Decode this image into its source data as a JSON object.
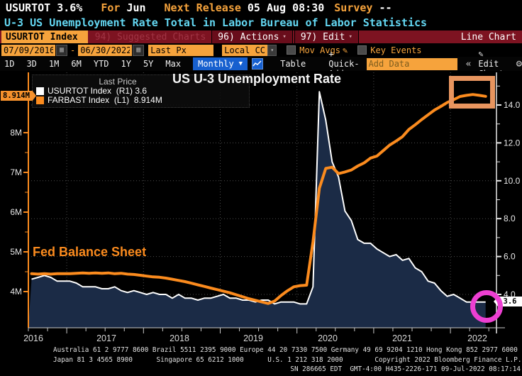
{
  "header": {
    "ticker": "USURTOT",
    "value": "3.6%",
    "for_label": "For",
    "for_value": "Jun",
    "next_release_label": "Next Release",
    "next_release_value": "05 Aug 08:30",
    "survey_label": "Survey",
    "survey_value": "--",
    "description": "U-3 US Unemployment Rate Total in Labor Bureau of Labor Statistics"
  },
  "toolbar": {
    "security_tag": "USURTOT Index",
    "suggested_charts": "94) Suggested Charts",
    "actions": "96) Actions",
    "edit": "97) Edit",
    "chart_type": "Line Chart"
  },
  "settings_bar": {
    "date_from": "07/09/2016",
    "dash": "-",
    "date_to": "06/30/2022",
    "price_field": "Last Px",
    "currency": "Local CCY",
    "mov_avgs": "Mov Avgs",
    "key_events": "Key Events"
  },
  "period_bar": {
    "ranges": [
      "1D",
      "3D",
      "1M",
      "6M",
      "YTD",
      "1Y",
      "5Y",
      "Max"
    ],
    "frequency": "Monthly",
    "table": "Table",
    "quick_add": "+ Quick-Add",
    "add_data_placeholder": "Add Data",
    "edit_chart": "Edit Chart"
  },
  "icons": {
    "calendar": "▦",
    "pencil": "✎",
    "gear": "⚙",
    "collapse": "«",
    "caret_down": "▾",
    "triangle_down": "▼"
  },
  "legend": {
    "title": "Last Price",
    "items": [
      {
        "swatch": "#ffffff",
        "label": "USURTOT Index  (R1) 3.6"
      },
      {
        "swatch": "#fb8b1e",
        "label": "FARBAST Index  (L1)  8.914M"
      }
    ]
  },
  "chart_annotations": {
    "title": "US U-3 Unemployment Rate",
    "fed_label": "Fed Balance Sheet",
    "left_last_badge": "8.914M",
    "right_last_badge": "3.6"
  },
  "colors": {
    "amber_ui": "#f6a33c",
    "orange_line": "#fb8b1e",
    "cyan_text": "#63d7f2",
    "red_bar": "#7d1321",
    "blue_button": "#1760cf",
    "navy_fill": "#1b2b46",
    "magenta_annotation": "#ed3fd2",
    "orange_annotation": "#e8955f",
    "white_line": "#ffffff"
  },
  "chart_data": {
    "type": "line",
    "title": "US U-3 Unemployment Rate",
    "frequency": "monthly",
    "x_start": "2016-07",
    "x_end": "2022-06",
    "x_labels": [
      "2016",
      "2017",
      "2018",
      "2019",
      "2020",
      "2021",
      "2022"
    ],
    "left_axis": {
      "unit": "M",
      "tick_values": [
        8,
        7,
        6,
        5,
        4
      ],
      "tick_labels": [
        "8M",
        "7M",
        "6M",
        "5M",
        "4M"
      ],
      "last_value": 8.914
    },
    "right_axis": {
      "tick_values": [
        14,
        12,
        10,
        8,
        6,
        4
      ],
      "tick_labels": [
        "14.0",
        "12.0",
        "10.0",
        "8.0",
        "6.0",
        "4.0"
      ],
      "last_value": 3.6
    },
    "series": [
      {
        "name": "USURTOT Index",
        "axis": "R1",
        "color": "#ffffff",
        "fill": "#1b2b46",
        "values": [
          4.8,
          4.9,
          5.0,
          4.9,
          4.7,
          4.7,
          4.7,
          4.6,
          4.4,
          4.4,
          4.4,
          4.3,
          4.3,
          4.4,
          4.2,
          4.1,
          4.2,
          4.1,
          4.0,
          4.1,
          4.0,
          4.0,
          3.8,
          4.0,
          3.8,
          3.8,
          3.7,
          3.8,
          3.8,
          3.9,
          4.0,
          3.8,
          3.8,
          3.7,
          3.7,
          3.6,
          3.7,
          3.7,
          3.5,
          3.6,
          3.6,
          3.6,
          3.5,
          3.5,
          4.4,
          14.7,
          13.2,
          11.0,
          10.2,
          8.4,
          7.9,
          6.9,
          6.7,
          6.7,
          6.4,
          6.2,
          6.0,
          6.1,
          5.8,
          5.9,
          5.4,
          5.2,
          4.7,
          4.6,
          4.2,
          3.9,
          4.0,
          3.8,
          3.6,
          3.6,
          3.6,
          3.6
        ]
      },
      {
        "name": "FARBAST Index",
        "axis": "L1",
        "color": "#fb8b1e",
        "values": [
          4.45,
          4.44,
          4.45,
          4.44,
          4.45,
          4.45,
          4.45,
          4.46,
          4.47,
          4.46,
          4.47,
          4.46,
          4.47,
          4.45,
          4.46,
          4.44,
          4.43,
          4.41,
          4.39,
          4.37,
          4.36,
          4.34,
          4.31,
          4.28,
          4.25,
          4.21,
          4.17,
          4.13,
          4.09,
          4.05,
          4.01,
          3.97,
          3.92,
          3.87,
          3.82,
          3.78,
          3.74,
          3.7,
          3.76,
          3.9,
          4.02,
          4.12,
          4.15,
          4.16,
          5.25,
          6.6,
          7.1,
          7.13,
          6.97,
          7.01,
          7.06,
          7.16,
          7.24,
          7.36,
          7.41,
          7.55,
          7.69,
          7.79,
          7.9,
          8.08,
          8.2,
          8.33,
          8.45,
          8.57,
          8.66,
          8.76,
          8.83,
          8.91,
          8.94,
          8.96,
          8.94,
          8.914
        ]
      }
    ]
  },
  "footer": {
    "line1": "Australia 61 2 9777 8600 Brazil 5511 2395 9000 Europe 44 20 7330 7500 Germany 49 69 9204 1210 Hong Kong 852 2977 6000",
    "line2": "Japan 81 3 4565 8900      Singapore 65 6212 1000      U.S. 1 212 318 2000        Copyright 2022 Bloomberg Finance L.P.",
    "line3": "SN 286665 EDT  GMT-4:00 H435-2226-171 09-Jul-2022 08:17:14"
  }
}
